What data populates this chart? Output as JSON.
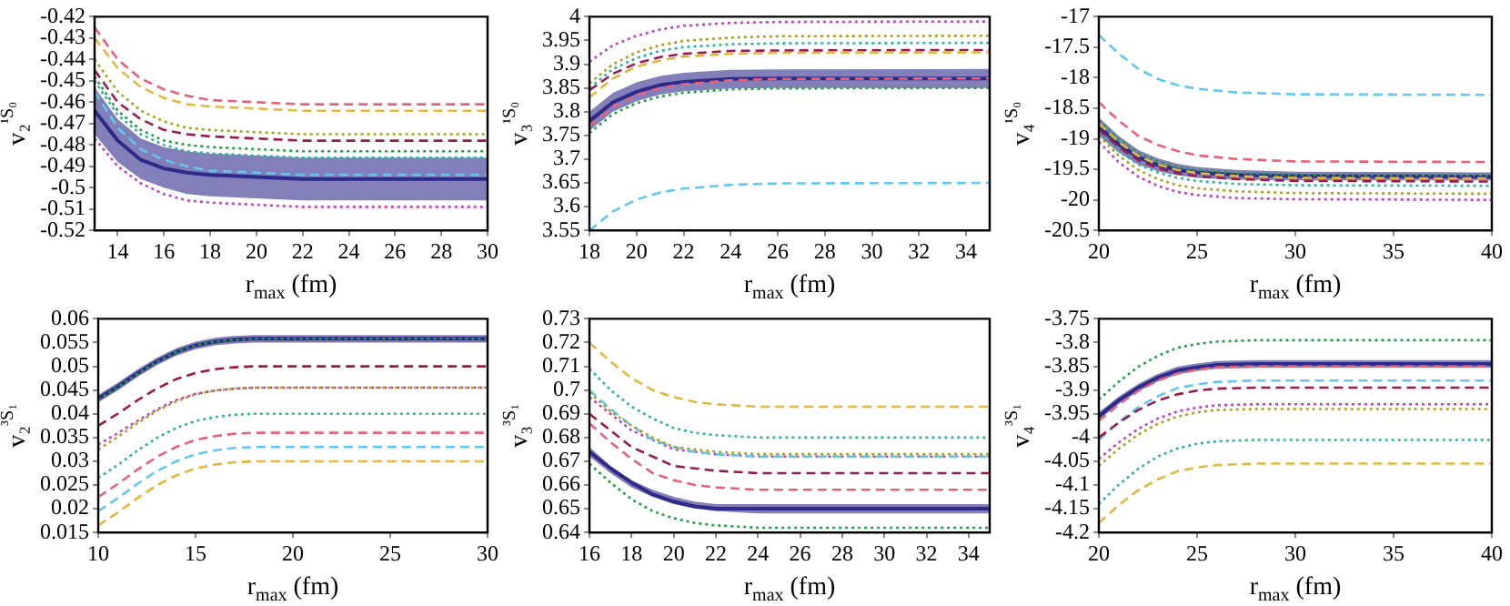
{
  "chart_data": [
    {
      "type": "line",
      "xlabel": "r$_{max}$ (fm)",
      "ylabel": "v₂$^{¹S₀}$",
      "xlim": [
        13,
        30
      ],
      "xticks": [
        14,
        16,
        18,
        20,
        22,
        24,
        26,
        28,
        30
      ],
      "ylim": [
        -0.52,
        -0.42
      ],
      "yticks": [
        -0.52,
        -0.51,
        -0.5,
        -0.49,
        -0.48,
        -0.47,
        -0.46,
        -0.45,
        -0.44,
        -0.43,
        -0.42
      ],
      "x": [
        13,
        14,
        15,
        16,
        17,
        18,
        20,
        22,
        30
      ],
      "series": [
        {
          "color": "#2e2a8a",
          "line_style": "solid",
          "values": [
            -0.464,
            -0.478,
            -0.487,
            -0.491,
            -0.493,
            -0.494,
            -0.495,
            -0.496,
            -0.496
          ],
          "upper": [
            -0.453,
            -0.468,
            -0.477,
            -0.481,
            -0.483,
            -0.484,
            -0.485,
            -0.486,
            -0.486
          ],
          "lower": [
            -0.475,
            -0.488,
            -0.496,
            -0.5,
            -0.503,
            -0.504,
            -0.505,
            -0.506,
            -0.506
          ]
        },
        {
          "color": "#e8607a",
          "line_style": "dashed",
          "values": [
            -0.425,
            -0.44,
            -0.449,
            -0.454,
            -0.457,
            -0.459,
            -0.46,
            -0.461,
            -0.461
          ]
        },
        {
          "color": "#e0b840",
          "line_style": "dashed",
          "values": [
            -0.43,
            -0.444,
            -0.453,
            -0.458,
            -0.461,
            -0.462,
            -0.463,
            -0.464,
            -0.464
          ]
        },
        {
          "color": "#a8a020",
          "line_style": "dotted",
          "values": [
            -0.44,
            -0.455,
            -0.464,
            -0.469,
            -0.472,
            -0.473,
            -0.474,
            -0.475,
            -0.475
          ]
        },
        {
          "color": "#9a1a50",
          "line_style": "dashed",
          "values": [
            -0.445,
            -0.46,
            -0.468,
            -0.473,
            -0.475,
            -0.476,
            -0.477,
            -0.478,
            -0.478
          ]
        },
        {
          "color": "#20a040",
          "line_style": "dotted",
          "values": [
            -0.448,
            -0.464,
            -0.473,
            -0.478,
            -0.48,
            -0.481,
            -0.482,
            -0.483,
            -0.483
          ]
        },
        {
          "color": "#30b0a0",
          "line_style": "dotted",
          "values": [
            -0.45,
            -0.466,
            -0.475,
            -0.48,
            -0.483,
            -0.484,
            -0.485,
            -0.486,
            -0.486
          ]
        },
        {
          "color": "#60c8f0",
          "line_style": "dashed",
          "values": [
            -0.455,
            -0.472,
            -0.482,
            -0.487,
            -0.49,
            -0.492,
            -0.493,
            -0.494,
            -0.494
          ]
        },
        {
          "color": "#c040c0",
          "line_style": "dotted",
          "values": [
            -0.477,
            -0.49,
            -0.498,
            -0.503,
            -0.506,
            -0.507,
            -0.508,
            -0.509,
            -0.509
          ]
        }
      ]
    },
    {
      "type": "line",
      "xlabel": "r$_{max}$ (fm)",
      "ylabel": "v₃$^{¹S₀}$",
      "xlim": [
        18,
        35
      ],
      "xticks": [
        18,
        20,
        22,
        24,
        26,
        28,
        30,
        32,
        34
      ],
      "ylim": [
        3.55,
        4
      ],
      "yticks": [
        3.55,
        3.6,
        3.65,
        3.7,
        3.75,
        3.8,
        3.85,
        3.9,
        3.95,
        4
      ],
      "x": [
        18,
        19,
        20,
        21,
        22,
        24,
        26,
        35
      ],
      "series": [
        {
          "color": "#2e2a8a",
          "line_style": "solid",
          "values": [
            3.78,
            3.82,
            3.842,
            3.856,
            3.863,
            3.869,
            3.87,
            3.87
          ],
          "upper": [
            3.8,
            3.84,
            3.862,
            3.875,
            3.882,
            3.888,
            3.889,
            3.89
          ],
          "lower": [
            3.76,
            3.8,
            3.822,
            3.836,
            3.843,
            3.849,
            3.85,
            3.85
          ]
        },
        {
          "color": "#e8607a",
          "line_style": "dashed",
          "values": [
            3.77,
            3.81,
            3.835,
            3.85,
            3.858,
            3.866,
            3.869,
            3.87
          ]
        },
        {
          "color": "#e0b840",
          "line_style": "dashed",
          "values": [
            3.83,
            3.87,
            3.895,
            3.908,
            3.916,
            3.922,
            3.924,
            3.925
          ]
        },
        {
          "color": "#a8a020",
          "line_style": "dotted",
          "values": [
            3.86,
            3.9,
            3.925,
            3.94,
            3.949,
            3.956,
            3.959,
            3.96
          ]
        },
        {
          "color": "#9a1a50",
          "line_style": "dashed",
          "values": [
            3.845,
            3.88,
            3.902,
            3.915,
            3.922,
            3.928,
            3.929,
            3.93
          ]
        },
        {
          "color": "#20a040",
          "line_style": "dotted",
          "values": [
            3.755,
            3.795,
            3.818,
            3.832,
            3.84,
            3.847,
            3.849,
            3.85
          ]
        },
        {
          "color": "#30b0a0",
          "line_style": "dotted",
          "values": [
            3.85,
            3.89,
            3.913,
            3.928,
            3.936,
            3.942,
            3.944,
            3.945
          ]
        },
        {
          "color": "#60c8f0",
          "line_style": "dashed",
          "values": [
            3.55,
            3.59,
            3.615,
            3.63,
            3.638,
            3.646,
            3.649,
            3.65
          ]
        },
        {
          "color": "#c040c0",
          "line_style": "dotted",
          "values": [
            3.905,
            3.94,
            3.96,
            3.973,
            3.981,
            3.987,
            3.989,
            3.99
          ]
        }
      ]
    },
    {
      "type": "line",
      "xlabel": "r$_{max}$ (fm)",
      "ylabel": "v₄$^{¹S₀}$",
      "xlim": [
        20,
        40
      ],
      "xticks": [
        20,
        25,
        30,
        35,
        40
      ],
      "ylim": [
        -20.5,
        -17
      ],
      "yticks": [
        -20.5,
        -20,
        -19.5,
        -19,
        -18.5,
        -18,
        -17.5,
        -17
      ],
      "x": [
        20,
        21,
        22,
        23,
        24,
        25,
        27,
        30,
        40
      ],
      "series": [
        {
          "color": "#2e2a8a",
          "line_style": "solid",
          "values": [
            -18.8,
            -19.09,
            -19.3,
            -19.43,
            -19.51,
            -19.55,
            -19.59,
            -19.61,
            -19.62
          ],
          "upper": [
            -18.65,
            -18.95,
            -19.18,
            -19.32,
            -19.41,
            -19.46,
            -19.51,
            -19.54,
            -19.55
          ],
          "lower": [
            -18.95,
            -19.22,
            -19.42,
            -19.53,
            -19.6,
            -19.64,
            -19.67,
            -19.68,
            -19.68
          ]
        },
        {
          "color": "#e8607a",
          "line_style": "dashed",
          "values": [
            -18.4,
            -18.7,
            -18.95,
            -19.1,
            -19.2,
            -19.27,
            -19.33,
            -19.37,
            -19.38
          ]
        },
        {
          "color": "#e0b840",
          "line_style": "dashed",
          "values": [
            -18.75,
            -19.05,
            -19.28,
            -19.42,
            -19.51,
            -19.56,
            -19.61,
            -19.64,
            -19.65
          ]
        },
        {
          "color": "#a8a020",
          "line_style": "dotted",
          "values": [
            -18.95,
            -19.27,
            -19.51,
            -19.66,
            -19.76,
            -19.81,
            -19.86,
            -19.89,
            -19.9
          ]
        },
        {
          "color": "#9a1a50",
          "line_style": "dashed",
          "values": [
            -18.85,
            -19.13,
            -19.35,
            -19.48,
            -19.56,
            -19.61,
            -19.66,
            -19.69,
            -19.7
          ]
        },
        {
          "color": "#20a040",
          "line_style": "dotted",
          "values": [
            -18.7,
            -19,
            -19.23,
            -19.37,
            -19.46,
            -19.51,
            -19.56,
            -19.59,
            -19.6
          ]
        },
        {
          "color": "#30b0a0",
          "line_style": "dotted",
          "values": [
            -18.9,
            -19.2,
            -19.42,
            -19.55,
            -19.64,
            -19.69,
            -19.74,
            -19.76,
            -19.77
          ]
        },
        {
          "color": "#60c8f0",
          "line_style": "dashed",
          "values": [
            -17.3,
            -17.6,
            -17.85,
            -18.02,
            -18.12,
            -18.18,
            -18.24,
            -18.27,
            -18.28
          ]
        },
        {
          "color": "#c040c0",
          "line_style": "dotted",
          "values": [
            -19.05,
            -19.38,
            -19.62,
            -19.77,
            -19.87,
            -19.92,
            -19.97,
            -19.99,
            -20
          ]
        }
      ]
    },
    {
      "type": "line",
      "xlabel": "r$_{max}$ (fm)",
      "ylabel": "v₂$^{³S₁}$",
      "xlim": [
        10,
        30
      ],
      "xticks": [
        10,
        15,
        20,
        25,
        30
      ],
      "ylim": [
        0.015,
        0.06
      ],
      "yticks": [
        0.015,
        0.02,
        0.025,
        0.03,
        0.035,
        0.04,
        0.045,
        0.05,
        0.055,
        0.06
      ],
      "x": [
        10,
        11,
        12,
        13,
        14,
        15,
        16,
        17,
        18,
        20,
        30
      ],
      "series": [
        {
          "color": "#2e2a8a",
          "line_style": "solid",
          "values": [
            0.0432,
            0.0457,
            0.0485,
            0.051,
            0.053,
            0.0544,
            0.0552,
            0.0556,
            0.0558,
            0.0558,
            0.0558
          ],
          "upper": [
            0.044,
            0.0465,
            0.0493,
            0.0518,
            0.0538,
            0.0552,
            0.056,
            0.0564,
            0.0566,
            0.0566,
            0.0566
          ],
          "lower": [
            0.0424,
            0.0449,
            0.0477,
            0.0502,
            0.0522,
            0.0536,
            0.0544,
            0.0548,
            0.055,
            0.055,
            0.055
          ]
        },
        {
          "color": "#e8607a",
          "line_style": "dashed",
          "values": [
            0.0225,
            0.0252,
            0.0282,
            0.0309,
            0.033,
            0.0345,
            0.0353,
            0.0358,
            0.036,
            0.036,
            0.036
          ]
        },
        {
          "color": "#e0b840",
          "line_style": "dashed",
          "values": [
            0.0165,
            0.0192,
            0.0222,
            0.0249,
            0.027,
            0.0285,
            0.0293,
            0.0298,
            0.03,
            0.03,
            0.03
          ]
        },
        {
          "color": "#a8a020",
          "line_style": "dotted",
          "values": [
            0.0325,
            0.0351,
            0.038,
            0.0406,
            0.0426,
            0.0441,
            0.0449,
            0.0453,
            0.0455,
            0.0455,
            0.0455
          ]
        },
        {
          "color": "#9a1a50",
          "line_style": "dashed",
          "values": [
            0.0375,
            0.04,
            0.0428,
            0.0453,
            0.0473,
            0.0486,
            0.0494,
            0.0498,
            0.05,
            0.05,
            0.05
          ]
        },
        {
          "color": "#20a040",
          "line_style": "dotted",
          "values": [
            0.043,
            0.0456,
            0.0484,
            0.0509,
            0.053,
            0.0544,
            0.0552,
            0.0556,
            0.0558,
            0.0558,
            0.0558
          ]
        },
        {
          "color": "#30b0a0",
          "line_style": "dotted",
          "values": [
            0.0265,
            0.0292,
            0.0322,
            0.0349,
            0.037,
            0.0385,
            0.0393,
            0.0398,
            0.04,
            0.04,
            0.04
          ]
        },
        {
          "color": "#60c8f0",
          "line_style": "dashed",
          "values": [
            0.0195,
            0.0222,
            0.0252,
            0.0279,
            0.03,
            0.0315,
            0.0323,
            0.0328,
            0.033,
            0.033,
            0.033
          ]
        },
        {
          "color": "#c040c0",
          "line_style": "dotted",
          "values": [
            0.0335,
            0.0359,
            0.0385,
            0.0409,
            0.0429,
            0.0442,
            0.0449,
            0.0453,
            0.0455,
            0.0455,
            0.0455
          ]
        }
      ]
    },
    {
      "type": "line",
      "xlabel": "r$_{max}$ (fm)",
      "ylabel": "v₃$^{³S₁}$",
      "xlim": [
        16,
        35
      ],
      "xticks": [
        16,
        18,
        20,
        22,
        24,
        26,
        28,
        30,
        32,
        34
      ],
      "ylim": [
        0.64,
        0.73
      ],
      "yticks": [
        0.64,
        0.65,
        0.66,
        0.67,
        0.68,
        0.69,
        0.7,
        0.71,
        0.72,
        0.73
      ],
      "x": [
        16,
        17,
        18,
        19,
        20,
        21,
        22,
        24,
        35
      ],
      "series": [
        {
          "color": "#2e2a8a",
          "line_style": "solid",
          "values": [
            0.674,
            0.667,
            0.661,
            0.656,
            0.653,
            0.651,
            0.65,
            0.65,
            0.65
          ],
          "upper": [
            0.676,
            0.668,
            0.662,
            0.658,
            0.655,
            0.653,
            0.652,
            0.652,
            0.652
          ],
          "lower": [
            0.672,
            0.665,
            0.659,
            0.655,
            0.652,
            0.65,
            0.649,
            0.648,
            0.648
          ]
        },
        {
          "color": "#e8607a",
          "line_style": "dashed",
          "values": [
            0.686,
            0.678,
            0.671,
            0.665,
            0.662,
            0.66,
            0.659,
            0.658,
            0.658
          ]
        },
        {
          "color": "#e0b840",
          "line_style": "dashed",
          "values": [
            0.72,
            0.712,
            0.705,
            0.7,
            0.697,
            0.695,
            0.694,
            0.693,
            0.693
          ]
        },
        {
          "color": "#a8a020",
          "line_style": "dotted",
          "values": [
            0.699,
            0.691,
            0.685,
            0.68,
            0.676,
            0.675,
            0.674,
            0.673,
            0.673
          ]
        },
        {
          "color": "#9a1a50",
          "line_style": "dashed",
          "values": [
            0.69,
            0.683,
            0.676,
            0.672,
            0.668,
            0.667,
            0.666,
            0.665,
            0.665
          ]
        },
        {
          "color": "#20a040",
          "line_style": "dotted",
          "values": [
            0.669,
            0.661,
            0.654,
            0.649,
            0.646,
            0.644,
            0.643,
            0.642,
            0.642
          ]
        },
        {
          "color": "#30b0a0",
          "line_style": "dotted",
          "values": [
            0.709,
            0.7,
            0.693,
            0.688,
            0.684,
            0.682,
            0.681,
            0.68,
            0.68
          ]
        },
        {
          "color": "#60c8f0",
          "line_style": "dashed",
          "values": [
            0.7,
            0.692,
            0.685,
            0.679,
            0.676,
            0.674,
            0.673,
            0.672,
            0.672
          ]
        },
        {
          "color": "#c040c0",
          "line_style": "dotted",
          "values": [
            0.697,
            0.69,
            0.683,
            0.679,
            0.675,
            0.674,
            0.673,
            0.672,
            0.672
          ]
        }
      ]
    },
    {
      "type": "line",
      "xlabel": "r$_{max}$ (fm)",
      "ylabel": "v₄$^{³S₁}$",
      "xlim": [
        20,
        40
      ],
      "xticks": [
        20,
        25,
        30,
        35,
        40
      ],
      "ylim": [
        -4.2,
        -3.75
      ],
      "yticks": [
        -4.2,
        -4.15,
        -4.1,
        -4.05,
        -4,
        -3.95,
        -3.9,
        -3.85,
        -3.8,
        -3.75
      ],
      "x": [
        20,
        21,
        22,
        23,
        24,
        25,
        26,
        28,
        40
      ],
      "series": [
        {
          "color": "#2e2a8a",
          "line_style": "solid",
          "values": [
            -3.955,
            -3.922,
            -3.895,
            -3.874,
            -3.859,
            -3.852,
            -3.847,
            -3.845,
            -3.845
          ],
          "upper": [
            -3.947,
            -3.914,
            -3.887,
            -3.866,
            -3.851,
            -3.844,
            -3.839,
            -3.837,
            -3.837
          ],
          "lower": [
            -3.963,
            -3.93,
            -3.903,
            -3.882,
            -3.867,
            -3.86,
            -3.855,
            -3.853,
            -3.853
          ]
        },
        {
          "color": "#e8607a",
          "line_style": "dashed",
          "values": [
            -3.965,
            -3.931,
            -3.902,
            -3.88,
            -3.865,
            -3.857,
            -3.852,
            -3.85,
            -3.85
          ]
        },
        {
          "color": "#e0b840",
          "line_style": "dashed",
          "values": [
            -4.18,
            -4.143,
            -4.111,
            -4.088,
            -4.071,
            -4.063,
            -4.058,
            -4.055,
            -4.055
          ]
        },
        {
          "color": "#a8a020",
          "line_style": "dotted",
          "values": [
            -4.06,
            -4.024,
            -3.994,
            -3.971,
            -3.956,
            -3.947,
            -3.942,
            -3.94,
            -3.94
          ]
        },
        {
          "color": "#9a1a50",
          "line_style": "dashed",
          "values": [
            -4,
            -3.969,
            -3.942,
            -3.922,
            -3.909,
            -3.901,
            -3.897,
            -3.895,
            -3.895
          ]
        },
        {
          "color": "#20a040",
          "line_style": "dotted",
          "values": [
            -3.92,
            -3.883,
            -3.851,
            -3.828,
            -3.811,
            -3.803,
            -3.798,
            -3.795,
            -3.795
          ]
        },
        {
          "color": "#30b0a0",
          "line_style": "dotted",
          "values": [
            -4.14,
            -4.1,
            -4.066,
            -4.04,
            -4.023,
            -4.013,
            -4.008,
            -4.005,
            -4.005
          ]
        },
        {
          "color": "#60c8f0",
          "line_style": "dashed",
          "values": [
            -4.005,
            -3.968,
            -3.936,
            -3.913,
            -3.896,
            -3.888,
            -3.883,
            -3.88,
            -3.88
          ]
        },
        {
          "color": "#c040c0",
          "line_style": "dotted",
          "values": [
            -4.045,
            -4.011,
            -3.982,
            -3.96,
            -3.945,
            -3.937,
            -3.932,
            -3.93,
            -3.93
          ]
        }
      ]
    }
  ]
}
